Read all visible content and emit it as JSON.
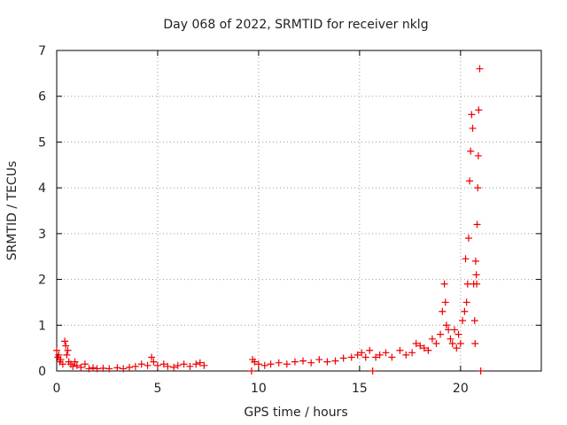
{
  "chart_data": {
    "type": "scatter",
    "title": "Day 068 of 2022, SRMTID for receiver nklg",
    "xlabel": "GPS time / hours",
    "ylabel": "SRMTID / TECUs",
    "xlim": [
      0,
      24
    ],
    "ylim": [
      0,
      7
    ],
    "xticks": [
      0,
      5,
      10,
      15,
      20
    ],
    "yticks": [
      0,
      1,
      2,
      3,
      4,
      5,
      6,
      7
    ],
    "grid": true,
    "marker": "+",
    "color": "#ee0000",
    "series": [
      {
        "name": "SRMTID",
        "x": [
          0.0,
          0.05,
          0.1,
          0.15,
          0.2,
          0.3,
          0.4,
          0.45,
          0.5,
          0.55,
          0.6,
          0.7,
          0.8,
          0.9,
          1.0,
          1.2,
          1.4,
          1.6,
          1.8,
          2.0,
          2.3,
          2.6,
          3.0,
          3.3,
          3.6,
          3.9,
          4.2,
          4.5,
          4.7,
          4.8,
          5.0,
          5.3,
          5.5,
          5.8,
          6.0,
          6.3,
          6.6,
          6.9,
          7.1,
          7.3,
          9.65,
          9.7,
          9.8,
          10.0,
          10.3,
          10.6,
          11.0,
          11.4,
          11.8,
          12.2,
          12.6,
          13.0,
          13.4,
          13.8,
          14.2,
          14.6,
          14.9,
          15.1,
          15.3,
          15.5,
          15.65,
          15.8,
          16.0,
          16.3,
          16.6,
          17.0,
          17.3,
          17.6,
          17.8,
          18.0,
          18.2,
          18.4,
          18.6,
          18.8,
          19.0,
          19.1,
          19.2,
          19.25,
          19.3,
          19.4,
          19.5,
          19.6,
          19.7,
          19.8,
          19.9,
          20.0,
          20.1,
          20.2,
          20.25,
          20.3,
          20.35,
          20.4,
          20.45,
          20.5,
          20.55,
          20.6,
          20.65,
          20.7,
          20.72,
          20.75,
          20.78,
          20.8,
          20.82,
          20.85,
          20.88,
          20.9,
          20.95,
          21.0
        ],
        "y": [
          0.45,
          0.3,
          0.35,
          0.2,
          0.25,
          0.15,
          0.65,
          0.55,
          0.35,
          0.45,
          0.2,
          0.15,
          0.1,
          0.2,
          0.12,
          0.08,
          0.15,
          0.05,
          0.07,
          0.05,
          0.06,
          0.05,
          0.07,
          0.05,
          0.08,
          0.1,
          0.15,
          0.12,
          0.3,
          0.2,
          0.12,
          0.15,
          0.1,
          0.08,
          0.12,
          0.15,
          0.1,
          0.15,
          0.18,
          0.12,
          0.0,
          0.25,
          0.2,
          0.15,
          0.12,
          0.15,
          0.18,
          0.15,
          0.2,
          0.22,
          0.18,
          0.25,
          0.2,
          0.22,
          0.28,
          0.3,
          0.35,
          0.4,
          0.3,
          0.45,
          0.0,
          0.3,
          0.35,
          0.4,
          0.3,
          0.45,
          0.35,
          0.4,
          0.6,
          0.55,
          0.5,
          0.45,
          0.7,
          0.6,
          0.8,
          1.3,
          1.9,
          1.5,
          1.0,
          0.9,
          0.7,
          0.6,
          0.9,
          0.5,
          0.8,
          0.6,
          1.1,
          1.3,
          2.45,
          1.5,
          1.9,
          2.9,
          4.15,
          4.8,
          5.6,
          5.3,
          1.9,
          1.1,
          0.6,
          2.4,
          2.1,
          1.9,
          3.2,
          4.0,
          4.7,
          5.7,
          6.6,
          0.0
        ]
      }
    ]
  }
}
